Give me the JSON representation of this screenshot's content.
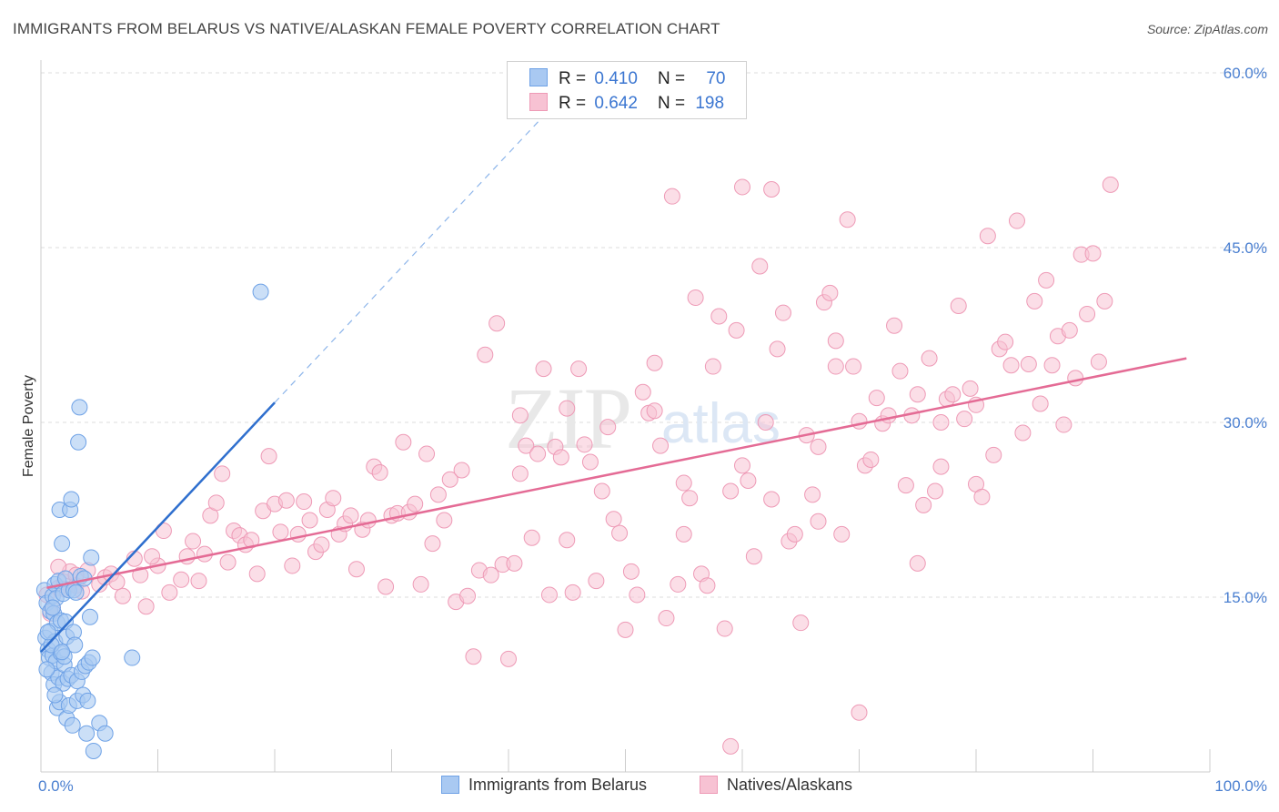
{
  "header": {
    "title": "IMMIGRANTS FROM BELARUS VS NATIVE/ALASKAN FEMALE POVERTY CORRELATION CHART",
    "source": "Source: ZipAtlas.com"
  },
  "legend": {
    "r_label": "R =",
    "n_label": "N =",
    "rows": [
      {
        "r": "0.410",
        "n": "70"
      },
      {
        "r": "0.642",
        "n": "198"
      }
    ]
  },
  "watermark": {
    "zip": "ZIP",
    "atlas": "atlas"
  },
  "colors": {
    "blue_fill": "#a9c9f2",
    "blue_stroke": "#6fa2e6",
    "blue_line": "#2f6fce",
    "pink_fill": "#f7c2d3",
    "pink_stroke": "#ee9ab6",
    "pink_line": "#e46b95",
    "grid": "#dddddd",
    "tick_label": "#4a7fd0"
  },
  "chart_data": {
    "type": "scatter",
    "title": "IMMIGRANTS FROM BELARUS VS NATIVE/ALASKAN FEMALE POVERTY CORRELATION CHART",
    "xlabel": "",
    "ylabel": "Female Poverty",
    "xlim": [
      0,
      100
    ],
    "ylim": [
      0,
      60
    ],
    "x_tick_labels": [
      "0.0%",
      "100.0%"
    ],
    "y_ticks": [
      15,
      30,
      45,
      60
    ],
    "y_tick_labels": [
      "15.0%",
      "30.0%",
      "45.0%",
      "60.0%"
    ],
    "grid": true,
    "legend_position": "top-center",
    "series": [
      {
        "name": "Immigrants from Belarus",
        "color": "#a9c9f2",
        "R": 0.41,
        "N": 70,
        "trend": {
          "x": [
            0,
            20
          ],
          "y": [
            10.3,
            31.7
          ],
          "dashed_to": [
            43,
            56.3
          ]
        },
        "points": [
          [
            0.3,
            15.6
          ],
          [
            0.4,
            11.5
          ],
          [
            0.5,
            14.5
          ],
          [
            0.6,
            10.5
          ],
          [
            0.7,
            9.8
          ],
          [
            0.8,
            13.8
          ],
          [
            0.8,
            12.1
          ],
          [
            0.9,
            8.5
          ],
          [
            1.0,
            15.1
          ],
          [
            1.0,
            10.0
          ],
          [
            1.1,
            7.5
          ],
          [
            1.1,
            13.6
          ],
          [
            1.2,
            11.2
          ],
          [
            1.2,
            16.1
          ],
          [
            1.3,
            9.5
          ],
          [
            1.3,
            14.9
          ],
          [
            1.4,
            5.5
          ],
          [
            1.4,
            12.8
          ],
          [
            1.5,
            8.1
          ],
          [
            1.5,
            16.4
          ],
          [
            1.6,
            6.0
          ],
          [
            1.6,
            22.5
          ],
          [
            1.7,
            13.0
          ],
          [
            1.7,
            10.2
          ],
          [
            1.8,
            19.6
          ],
          [
            1.9,
            7.6
          ],
          [
            1.9,
            15.3
          ],
          [
            2.0,
            9.2
          ],
          [
            2.1,
            16.6
          ],
          [
            2.1,
            12.9
          ],
          [
            2.2,
            4.6
          ],
          [
            2.2,
            11.6
          ],
          [
            2.3,
            8.0
          ],
          [
            2.4,
            5.7
          ],
          [
            2.4,
            15.6
          ],
          [
            2.5,
            22.5
          ],
          [
            2.6,
            23.4
          ],
          [
            2.6,
            8.3
          ],
          [
            2.7,
            4.0
          ],
          [
            2.8,
            15.6
          ],
          [
            2.8,
            12.0
          ],
          [
            2.9,
            10.9
          ],
          [
            3.0,
            15.4
          ],
          [
            3.1,
            6.1
          ],
          [
            3.1,
            7.8
          ],
          [
            3.2,
            28.3
          ],
          [
            3.3,
            31.3
          ],
          [
            3.4,
            16.8
          ],
          [
            3.5,
            8.6
          ],
          [
            3.6,
            6.6
          ],
          [
            3.7,
            16.6
          ],
          [
            3.8,
            9.1
          ],
          [
            3.9,
            3.3
          ],
          [
            4.0,
            6.1
          ],
          [
            4.1,
            9.4
          ],
          [
            4.2,
            13.3
          ],
          [
            4.3,
            18.4
          ],
          [
            4.4,
            9.8
          ],
          [
            4.5,
            1.8
          ],
          [
            5.0,
            4.2
          ],
          [
            5.5,
            3.3
          ],
          [
            7.8,
            9.8
          ],
          [
            18.8,
            41.2
          ],
          [
            0.5,
            8.8
          ],
          [
            0.9,
            10.9
          ],
          [
            1.2,
            6.6
          ],
          [
            2.0,
            9.9
          ],
          [
            1.0,
            14.1
          ],
          [
            0.6,
            12.0
          ],
          [
            1.8,
            10.3
          ]
        ]
      },
      {
        "name": "Natives/Alaskans",
        "color": "#f7c2d3",
        "R": 0.642,
        "N": 198,
        "trend": {
          "x": [
            0.5,
            98
          ],
          "y": [
            15.8,
            35.5
          ]
        },
        "points": [
          [
            0.5,
            15.2
          ],
          [
            1,
            14.1
          ],
          [
            1.5,
            15.8
          ],
          [
            2,
            16.3
          ],
          [
            2.5,
            17.2
          ],
          [
            3,
            16.0
          ],
          [
            3.5,
            15.5
          ],
          [
            4,
            17.3
          ],
          [
            5,
            16.1
          ],
          [
            5.5,
            16.7
          ],
          [
            6,
            17.0
          ],
          [
            7,
            15.1
          ],
          [
            8,
            18.3
          ],
          [
            8.5,
            16.9
          ],
          [
            9,
            14.2
          ],
          [
            10,
            17.7
          ],
          [
            10.5,
            20.7
          ],
          [
            11,
            15.4
          ],
          [
            12,
            16.5
          ],
          [
            12.5,
            18.5
          ],
          [
            13,
            19.8
          ],
          [
            13.5,
            16.4
          ],
          [
            14,
            18.7
          ],
          [
            14.5,
            22.0
          ],
          [
            15,
            23.1
          ],
          [
            15.5,
            25.6
          ],
          [
            16,
            18.0
          ],
          [
            16.5,
            20.7
          ],
          [
            17,
            20.3
          ],
          [
            17.5,
            19.5
          ],
          [
            18,
            19.9
          ],
          [
            18.5,
            17.0
          ],
          [
            19,
            22.4
          ],
          [
            19.5,
            27.1
          ],
          [
            20,
            23.0
          ],
          [
            20.5,
            20.6
          ],
          [
            21,
            23.3
          ],
          [
            21.5,
            17.7
          ],
          [
            22,
            20.4
          ],
          [
            22.5,
            23.2
          ],
          [
            23,
            21.6
          ],
          [
            23.5,
            18.9
          ],
          [
            24,
            19.5
          ],
          [
            24.5,
            22.5
          ],
          [
            25,
            23.5
          ],
          [
            25.5,
            20.4
          ],
          [
            26,
            21.3
          ],
          [
            26.5,
            22.0
          ],
          [
            27,
            17.4
          ],
          [
            27.5,
            20.8
          ],
          [
            28,
            21.6
          ],
          [
            28.5,
            26.2
          ],
          [
            29,
            25.7
          ],
          [
            29.5,
            15.9
          ],
          [
            30,
            22.0
          ],
          [
            30.5,
            22.2
          ],
          [
            31,
            28.3
          ],
          [
            31.5,
            22.3
          ],
          [
            32,
            23.0
          ],
          [
            32.5,
            16.1
          ],
          [
            33,
            27.3
          ],
          [
            33.5,
            19.6
          ],
          [
            34,
            23.8
          ],
          [
            34.5,
            21.6
          ],
          [
            35,
            25.1
          ],
          [
            35.5,
            14.6
          ],
          [
            36,
            25.9
          ],
          [
            36.5,
            15.1
          ],
          [
            37,
            9.9
          ],
          [
            37.5,
            17.3
          ],
          [
            38,
            35.8
          ],
          [
            38.5,
            16.9
          ],
          [
            39,
            38.5
          ],
          [
            39.5,
            17.8
          ],
          [
            40,
            9.7
          ],
          [
            40.5,
            17.9
          ],
          [
            41,
            30.6
          ],
          [
            41.5,
            28.0
          ],
          [
            42,
            20.1
          ],
          [
            42.5,
            27.3
          ],
          [
            43,
            34.6
          ],
          [
            43.5,
            15.2
          ],
          [
            44,
            27.9
          ],
          [
            44.5,
            27.0
          ],
          [
            45,
            31.2
          ],
          [
            45.5,
            15.4
          ],
          [
            46,
            34.6
          ],
          [
            46.5,
            28.1
          ],
          [
            47,
            26.6
          ],
          [
            47.5,
            16.4
          ],
          [
            48,
            24.1
          ],
          [
            48.5,
            29.6
          ],
          [
            49,
            21.7
          ],
          [
            49.5,
            20.5
          ],
          [
            50,
            12.2
          ],
          [
            50.5,
            17.2
          ],
          [
            51,
            15.2
          ],
          [
            51.5,
            32.6
          ],
          [
            52,
            30.8
          ],
          [
            52.5,
            35.1
          ],
          [
            53,
            28.0
          ],
          [
            53.5,
            13.2
          ],
          [
            54,
            49.4
          ],
          [
            54.5,
            16.1
          ],
          [
            55,
            24.8
          ],
          [
            55.5,
            23.5
          ],
          [
            56,
            40.7
          ],
          [
            56.5,
            17.0
          ],
          [
            57,
            16.0
          ],
          [
            57.5,
            34.8
          ],
          [
            58,
            39.1
          ],
          [
            58.5,
            12.3
          ],
          [
            59,
            24.1
          ],
          [
            59.5,
            37.9
          ],
          [
            60,
            26.3
          ],
          [
            60.5,
            25.0
          ],
          [
            61,
            18.5
          ],
          [
            61.5,
            43.4
          ],
          [
            62,
            30.0
          ],
          [
            62.5,
            23.4
          ],
          [
            63,
            36.3
          ],
          [
            63.5,
            39.4
          ],
          [
            64,
            19.8
          ],
          [
            64.5,
            20.4
          ],
          [
            65,
            12.8
          ],
          [
            65.5,
            28.9
          ],
          [
            66,
            23.8
          ],
          [
            66.5,
            27.9
          ],
          [
            67,
            40.3
          ],
          [
            67.5,
            41.1
          ],
          [
            68,
            37.0
          ],
          [
            68.5,
            20.4
          ],
          [
            69,
            47.4
          ],
          [
            69.5,
            34.8
          ],
          [
            70,
            30.1
          ],
          [
            70.5,
            26.3
          ],
          [
            71,
            26.8
          ],
          [
            71.5,
            32.1
          ],
          [
            72,
            29.9
          ],
          [
            72.5,
            30.6
          ],
          [
            73,
            38.3
          ],
          [
            73.5,
            34.4
          ],
          [
            74,
            24.6
          ],
          [
            74.5,
            30.6
          ],
          [
            75,
            32.4
          ],
          [
            75.5,
            22.9
          ],
          [
            76,
            35.5
          ],
          [
            76.5,
            24.1
          ],
          [
            77,
            26.2
          ],
          [
            77.5,
            32.0
          ],
          [
            78,
            32.4
          ],
          [
            78.5,
            40.0
          ],
          [
            79,
            30.3
          ],
          [
            79.5,
            32.9
          ],
          [
            80,
            24.7
          ],
          [
            80.5,
            23.6
          ],
          [
            81,
            46.0
          ],
          [
            81.5,
            27.2
          ],
          [
            82,
            36.3
          ],
          [
            82.5,
            36.9
          ],
          [
            83,
            34.9
          ],
          [
            83.5,
            47.3
          ],
          [
            84,
            29.1
          ],
          [
            84.5,
            35.0
          ],
          [
            85,
            40.4
          ],
          [
            85.5,
            31.6
          ],
          [
            86,
            42.2
          ],
          [
            86.5,
            34.9
          ],
          [
            87,
            37.4
          ],
          [
            87.5,
            29.8
          ],
          [
            88,
            37.9
          ],
          [
            88.5,
            33.8
          ],
          [
            89,
            44.4
          ],
          [
            89.5,
            39.3
          ],
          [
            90,
            44.5
          ],
          [
            90.5,
            35.2
          ],
          [
            91,
            40.4
          ],
          [
            91.5,
            50.4
          ],
          [
            60,
            50.2
          ],
          [
            62.5,
            50.0
          ],
          [
            59,
            2.2
          ],
          [
            70,
            5.1
          ],
          [
            41,
            25.6
          ],
          [
            45,
            19.9
          ],
          [
            55,
            20.4
          ],
          [
            66.5,
            21.5
          ],
          [
            75,
            17.9
          ],
          [
            68,
            34.8
          ],
          [
            77,
            30.0
          ],
          [
            52.5,
            31.0
          ],
          [
            80,
            31.5
          ],
          [
            2,
            15.7
          ],
          [
            3,
            16.9
          ],
          [
            6.5,
            16.3
          ],
          [
            9.5,
            18.5
          ],
          [
            1.5,
            17.6
          ],
          [
            0.8,
            13.6
          ]
        ]
      }
    ]
  },
  "bottom_legend": [
    "Immigrants from Belarus",
    "Natives/Alaskans"
  ]
}
